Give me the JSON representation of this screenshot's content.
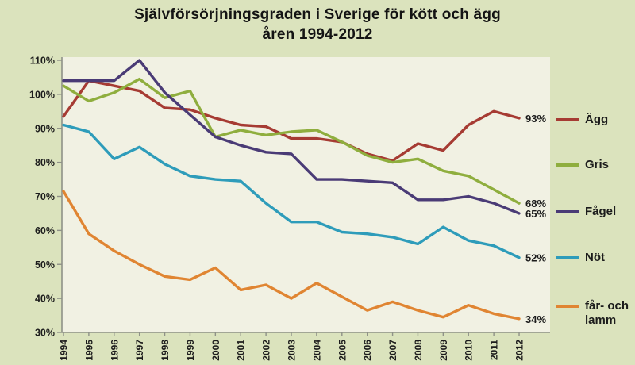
{
  "title": {
    "line1": "Självförsörjningsgraden i Sverige för kött och ägg",
    "line2": "åren 1994-2012"
  },
  "colors": {
    "page_bg": "#dbe3bd",
    "plot_bg": "#f1f1e3",
    "axis": "#8f9288",
    "tick_text": "#1c1c1c",
    "end_label_text": "#1c1c1c"
  },
  "chart_data": {
    "type": "line",
    "title": "Självförsörjningsgraden i Sverige för kött och ägg åren 1994-2012",
    "xlabel": "",
    "ylabel": "",
    "x": [
      1994,
      1995,
      1996,
      1997,
      1998,
      1999,
      2000,
      2001,
      2002,
      2003,
      2004,
      2005,
      2006,
      2007,
      2008,
      2009,
      2010,
      2011,
      2012
    ],
    "ylim": [
      30,
      110
    ],
    "ytick_step": 10,
    "ytick_labels": [
      "110%",
      "100%",
      "90%",
      "80%",
      "70%",
      "60%",
      "50%",
      "40%",
      "30%"
    ],
    "grid": false,
    "legend_position": "right",
    "series": [
      {
        "name": "Ägg",
        "color": "#a63b33",
        "end_label": "93%",
        "values": [
          93.5,
          104,
          102.5,
          101,
          96,
          95.5,
          93,
          91,
          90.5,
          87,
          87,
          86,
          82.5,
          80.5,
          85.5,
          83.5,
          91,
          95,
          93
        ]
      },
      {
        "name": "Gris",
        "color": "#8fae3e",
        "end_label": "68%",
        "values": [
          102.5,
          98,
          100.5,
          104.5,
          99,
          101,
          87.5,
          89.5,
          88,
          89,
          89.5,
          86,
          82,
          80,
          81,
          77.5,
          76,
          72,
          68
        ]
      },
      {
        "name": "Fågel",
        "color": "#4a3b76",
        "end_label": "65%",
        "values": [
          104,
          104,
          104,
          110,
          100.5,
          94,
          87.5,
          85,
          83,
          82.5,
          75,
          75,
          74.5,
          74,
          69,
          69,
          70,
          68,
          65
        ]
      },
      {
        "name": "Nöt",
        "color": "#2e9cba",
        "end_label": "52%",
        "values": [
          91,
          89,
          81,
          84.5,
          79.5,
          76,
          75,
          74.5,
          68,
          62.5,
          62.5,
          59.5,
          59,
          58,
          56,
          61,
          57,
          55.5,
          52
        ]
      },
      {
        "name": "får- och lamm",
        "color": "#e08532",
        "end_label": "34%",
        "values": [
          71.5,
          59,
          54,
          50,
          46.5,
          45.5,
          49,
          42.5,
          44,
          40,
          44.5,
          40.5,
          36.5,
          39,
          36.5,
          34.5,
          38,
          35.5,
          34
        ]
      }
    ]
  }
}
